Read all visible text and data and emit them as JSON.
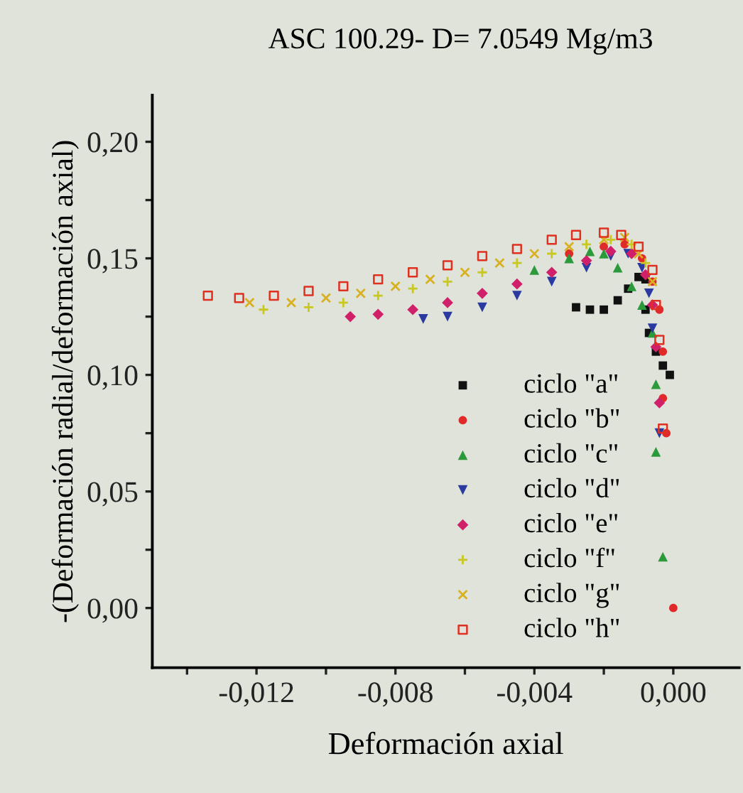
{
  "chart_data": {
    "type": "scatter",
    "title": "ASC 100.29- D= 7.0549 Mg/m3",
    "xlabel": "Deformación axial",
    "ylabel": "-(Deformación radial/deformación axial)",
    "xlim": [
      -0.015,
      0.0019
    ],
    "ylim": [
      -0.0256,
      0.22
    ],
    "xticks": [
      {
        "value": -0.014,
        "label": null
      },
      {
        "value": -0.012,
        "label": "-0,012"
      },
      {
        "value": -0.01,
        "label": null
      },
      {
        "value": -0.008,
        "label": "-0,008"
      },
      {
        "value": -0.006,
        "label": null
      },
      {
        "value": -0.004,
        "label": "-0,004"
      },
      {
        "value": -0.002,
        "label": null
      },
      {
        "value": 0.0,
        "label": "0,000"
      }
    ],
    "yticks": [
      {
        "value": 0.0,
        "label": "0,00"
      },
      {
        "value": 0.025,
        "label": null
      },
      {
        "value": 0.05,
        "label": "0,05"
      },
      {
        "value": 0.075,
        "label": null
      },
      {
        "value": 0.1,
        "label": "0,10"
      },
      {
        "value": 0.125,
        "label": null
      },
      {
        "value": 0.15,
        "label": "0,15"
      },
      {
        "value": 0.175,
        "label": null
      },
      {
        "value": 0.2,
        "label": "0,20"
      }
    ],
    "grid": false,
    "legend": "bottom right",
    "series": [
      {
        "name": "ciclo \"a\"",
        "color": "#111111",
        "marker": "square",
        "x": [
          -0.0028,
          -0.0024,
          -0.002,
          -0.0016,
          -0.0013,
          -0.001,
          -0.0008,
          -0.0008,
          -0.0007,
          -0.0005,
          -0.0003,
          -0.0001
        ],
        "values": [
          0.129,
          0.128,
          0.128,
          0.132,
          0.137,
          0.142,
          0.141,
          0.128,
          0.118,
          0.11,
          0.104,
          0.1
        ]
      },
      {
        "name": "ciclo \"b\"",
        "color": "#e02a2a",
        "marker": "circle",
        "x": [
          -0.003,
          -0.002,
          -0.0014,
          -0.0009,
          -0.0006,
          -0.0004,
          -0.0003,
          -0.0003,
          -0.0002,
          0.0
        ],
        "values": [
          0.152,
          0.155,
          0.156,
          0.15,
          0.14,
          0.128,
          0.11,
          0.09,
          0.075,
          0.0
        ]
      },
      {
        "name": "ciclo \"c\"",
        "color": "#2a9a3a",
        "marker": "triangle",
        "x": [
          -0.004,
          -0.003,
          -0.0024,
          -0.002,
          -0.0016,
          -0.0012,
          -0.0009,
          -0.0006,
          -0.0005,
          -0.0005,
          -0.0003
        ],
        "values": [
          0.145,
          0.15,
          0.153,
          0.152,
          0.146,
          0.138,
          0.13,
          0.118,
          0.096,
          0.067,
          0.022
        ]
      },
      {
        "name": "ciclo \"d\"",
        "color": "#2a3aa0",
        "marker": "triangle_down",
        "x": [
          -0.0072,
          -0.0065,
          -0.0055,
          -0.0045,
          -0.0035,
          -0.0025,
          -0.0018,
          -0.0013,
          -0.0009,
          -0.0007,
          -0.0006,
          -0.0004
        ],
        "values": [
          0.124,
          0.125,
          0.129,
          0.134,
          0.14,
          0.146,
          0.151,
          0.152,
          0.146,
          0.135,
          0.12,
          0.075
        ]
      },
      {
        "name": "ciclo \"e\"",
        "color": "#d0206a",
        "marker": "diamond",
        "x": [
          -0.0093,
          -0.0085,
          -0.0075,
          -0.0065,
          -0.0055,
          -0.0045,
          -0.0035,
          -0.0025,
          -0.0018,
          -0.0012,
          -0.0008,
          -0.0006,
          -0.0005,
          -0.0004
        ],
        "values": [
          0.125,
          0.126,
          0.128,
          0.131,
          0.135,
          0.139,
          0.144,
          0.149,
          0.153,
          0.152,
          0.143,
          0.13,
          0.112,
          0.088
        ]
      },
      {
        "name": "ciclo \"f\"",
        "color": "#c8c820",
        "marker": "cross",
        "x": [
          -0.0118,
          -0.0105,
          -0.0095,
          -0.0085,
          -0.0075,
          -0.0065,
          -0.0055,
          -0.0045,
          -0.0035,
          -0.0025,
          -0.0018,
          -0.0012,
          -0.0008
        ],
        "values": [
          0.128,
          0.129,
          0.131,
          0.134,
          0.137,
          0.14,
          0.144,
          0.148,
          0.152,
          0.156,
          0.158,
          0.156,
          0.148
        ]
      },
      {
        "name": "ciclo \"g\"",
        "color": "#d8b020",
        "marker": "x",
        "x": [
          -0.0122,
          -0.011,
          -0.01,
          -0.009,
          -0.008,
          -0.007,
          -0.006,
          -0.005,
          -0.004,
          -0.003,
          -0.002,
          -0.0014,
          -0.001,
          -0.0006
        ],
        "values": [
          0.131,
          0.131,
          0.133,
          0.135,
          0.138,
          0.141,
          0.144,
          0.148,
          0.152,
          0.155,
          0.158,
          0.159,
          0.152,
          0.14
        ]
      },
      {
        "name": "ciclo \"h\"",
        "color": "#e03020",
        "marker": "square-open",
        "x": [
          -0.0134,
          -0.0125,
          -0.0115,
          -0.0105,
          -0.0095,
          -0.0085,
          -0.0075,
          -0.0065,
          -0.0055,
          -0.0045,
          -0.0035,
          -0.0028,
          -0.002,
          -0.0015,
          -0.001,
          -0.0006,
          -0.0005,
          -0.0004,
          -0.0003
        ],
        "values": [
          0.134,
          0.133,
          0.134,
          0.136,
          0.138,
          0.141,
          0.144,
          0.147,
          0.151,
          0.154,
          0.158,
          0.16,
          0.161,
          0.16,
          0.155,
          0.145,
          0.13,
          0.115,
          0.077
        ]
      }
    ]
  }
}
